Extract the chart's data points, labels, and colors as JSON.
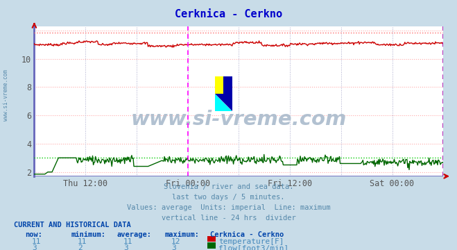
{
  "title": "Cerknica - Cerkno",
  "title_color": "#0000cc",
  "fig_bg_color": "#c8dce8",
  "plot_bg_color": "#ffffff",
  "grid_color_h": "#ffaaaa",
  "grid_color_v": "#aaaacc",
  "x_tick_labels": [
    "Thu 12:00",
    "Fri 00:00",
    "Fri 12:00",
    "Sat 00:00"
  ],
  "x_tick_positions": [
    0.125,
    0.375,
    0.625,
    0.875
  ],
  "ylim": [
    1.7,
    12.3
  ],
  "yticks": [
    2,
    4,
    6,
    8,
    10
  ],
  "temp_color": "#cc0000",
  "temp_max_color": "#ff6666",
  "flow_color": "#006600",
  "flow_max_color": "#00cc00",
  "vline_color": "#ff00ff",
  "vline2_color": "#aa00aa",
  "bottom_line_color": "#6666bb",
  "border_left_color": "#6666bb",
  "temp_max_val": 11.85,
  "flow_max_val": 3.0,
  "subtitle_lines": [
    "Slovenia / river and sea data.",
    "last two days / 5 minutes.",
    "Values: average  Units: imperial  Line: maximum",
    "vertical line - 24 hrs  divider"
  ],
  "subtitle_color": "#5588aa",
  "table_header_color": "#0044aa",
  "table_value_color": "#4488bb",
  "watermark": "www.si-vreme.com",
  "watermark_color": "#aabbcc",
  "temp_value": 11,
  "temp_min": 11,
  "temp_avg": 11,
  "temp_max": 12,
  "flow_value": 3,
  "flow_min": 2,
  "flow_avg": 3,
  "flow_max": 3
}
